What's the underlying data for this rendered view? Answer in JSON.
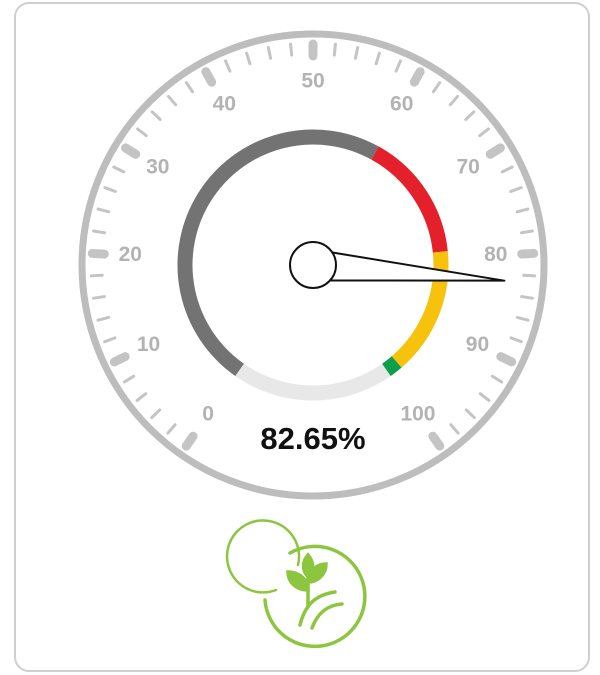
{
  "chart_data": {
    "type": "gauge",
    "min": 0,
    "max": 100,
    "ticks": [
      0,
      10,
      20,
      30,
      40,
      50,
      60,
      70,
      80,
      90,
      100
    ],
    "minor_ticks": [
      2,
      4,
      6,
      8,
      12,
      14,
      16,
      18,
      22,
      24,
      26,
      28,
      32,
      34,
      36,
      38,
      42,
      44,
      46,
      48,
      52,
      54,
      56,
      58,
      62,
      64,
      66,
      68,
      72,
      74,
      76,
      78,
      82,
      84,
      86,
      88,
      92,
      94,
      96,
      98
    ],
    "bands": [
      {
        "from": 0,
        "to": 60,
        "color": "#737373"
      },
      {
        "from": 60,
        "to": 79,
        "color": "#e4202a"
      },
      {
        "from": 79,
        "to": 98,
        "color": "#f7c20c"
      },
      {
        "from": 98,
        "to": 100,
        "color": "#0e9f4a"
      }
    ],
    "value": 82.65,
    "value_label": "82.65%"
  }
}
